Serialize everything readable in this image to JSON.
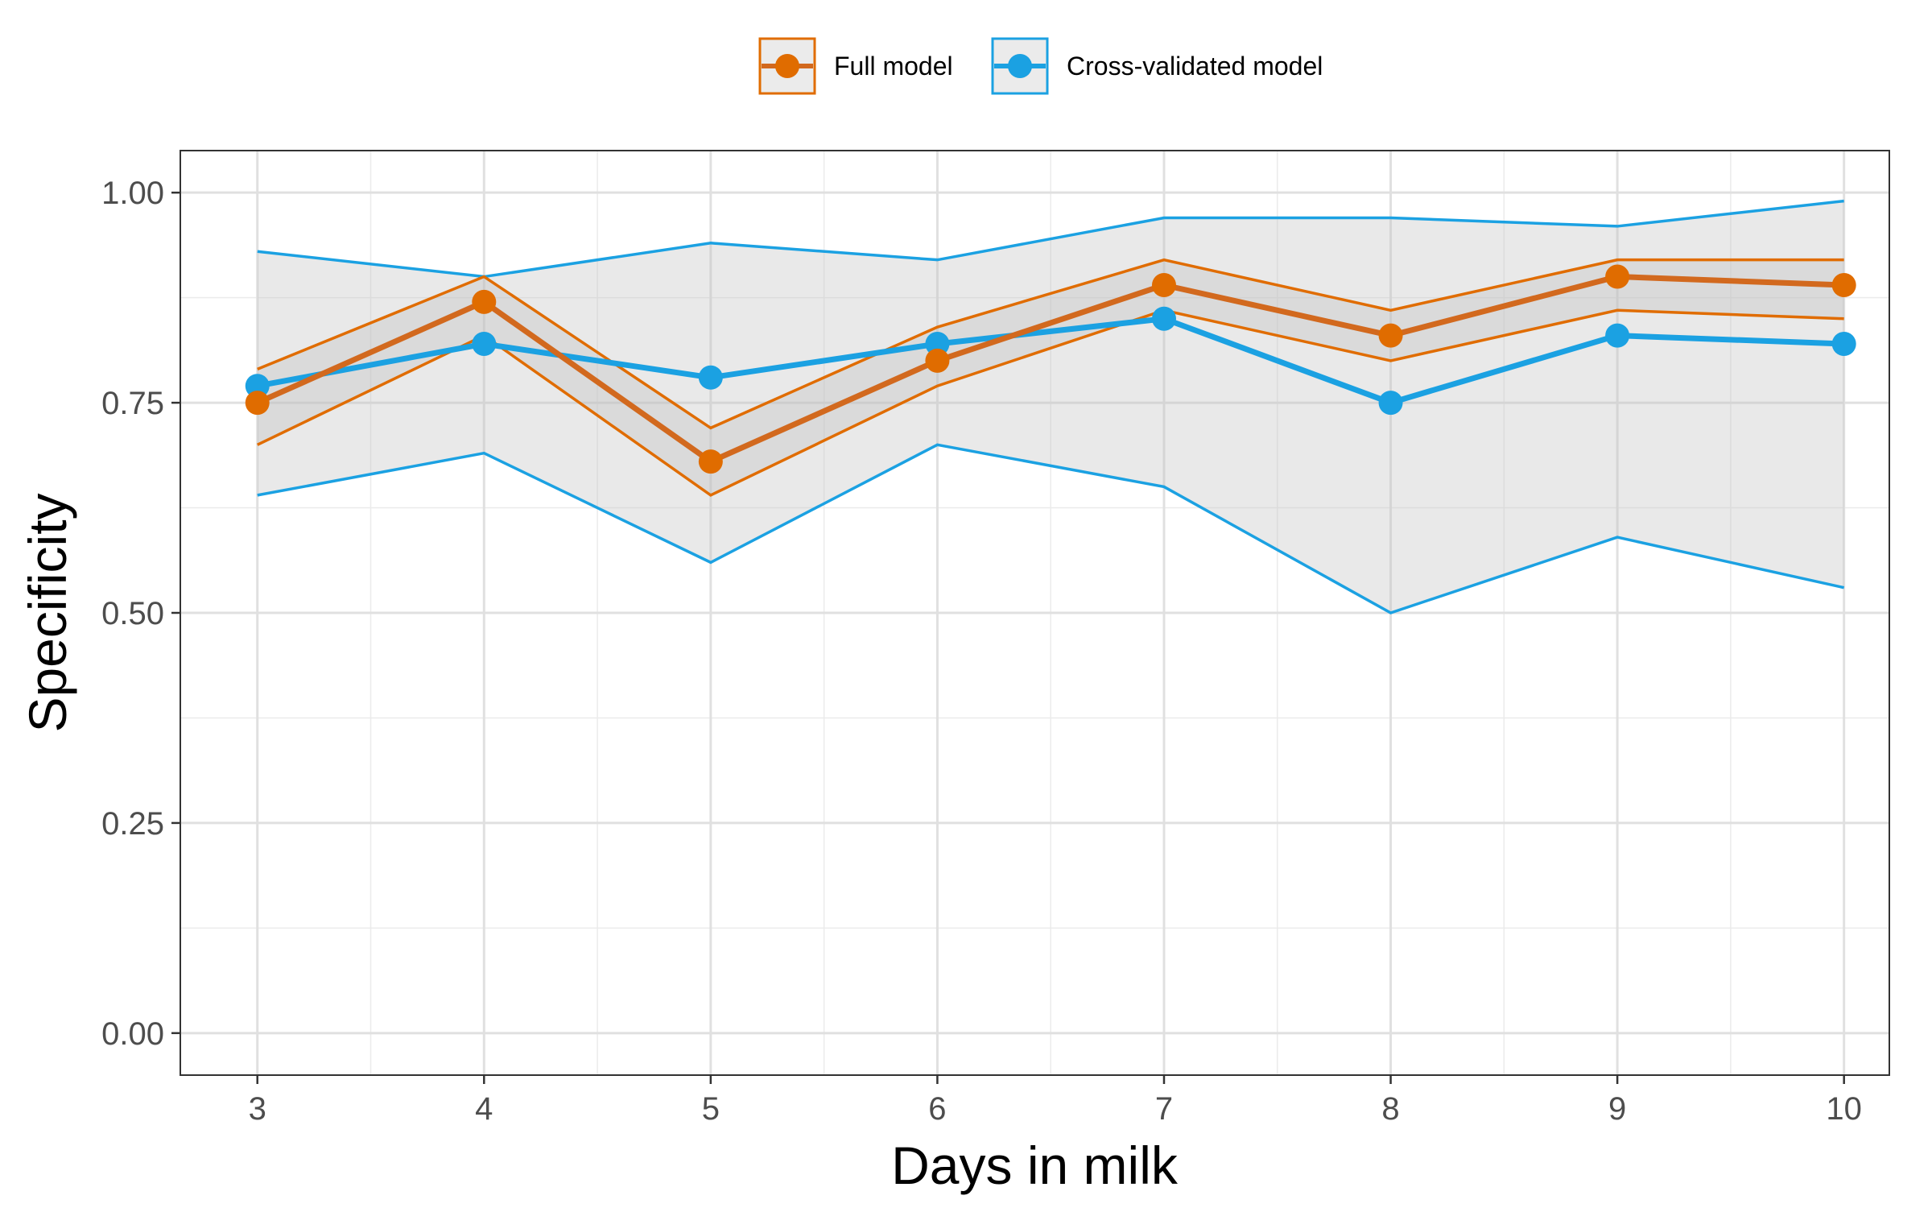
{
  "chart_data": {
    "type": "line",
    "xlabel": "Days in milk",
    "ylabel": "Specificity",
    "x": [
      3,
      4,
      5,
      6,
      7,
      8,
      9,
      10
    ],
    "xlim": [
      2.66,
      10.2
    ],
    "ylim": [
      -0.05,
      1.05
    ],
    "yticks": [
      0.0,
      0.25,
      0.5,
      0.75,
      1.0
    ],
    "ytick_labels": [
      "0.00",
      "0.25",
      "0.50",
      "0.75",
      "1.00"
    ],
    "xticks": [
      3,
      4,
      5,
      6,
      7,
      8,
      9,
      10
    ],
    "xtick_labels": [
      "3",
      "4",
      "5",
      "6",
      "7",
      "8",
      "9",
      "10"
    ],
    "grid": true,
    "legend_position": "top",
    "series": [
      {
        "name": "Full model",
        "color": "#E06C00",
        "values": [
          0.75,
          0.87,
          0.68,
          0.8,
          0.89,
          0.83,
          0.9,
          0.89
        ],
        "lower": [
          0.7,
          0.83,
          0.64,
          0.77,
          0.86,
          0.8,
          0.86,
          0.85
        ],
        "upper": [
          0.79,
          0.9,
          0.72,
          0.84,
          0.92,
          0.86,
          0.92,
          0.92
        ]
      },
      {
        "name": "Cross-validated model",
        "color": "#1BA1E2",
        "values": [
          0.77,
          0.82,
          0.78,
          0.82,
          0.85,
          0.75,
          0.83,
          0.82
        ],
        "lower": [
          0.64,
          0.69,
          0.56,
          0.7,
          0.65,
          0.5,
          0.59,
          0.53
        ],
        "upper": [
          0.93,
          0.9,
          0.94,
          0.92,
          0.97,
          0.97,
          0.96,
          0.99
        ]
      }
    ]
  }
}
